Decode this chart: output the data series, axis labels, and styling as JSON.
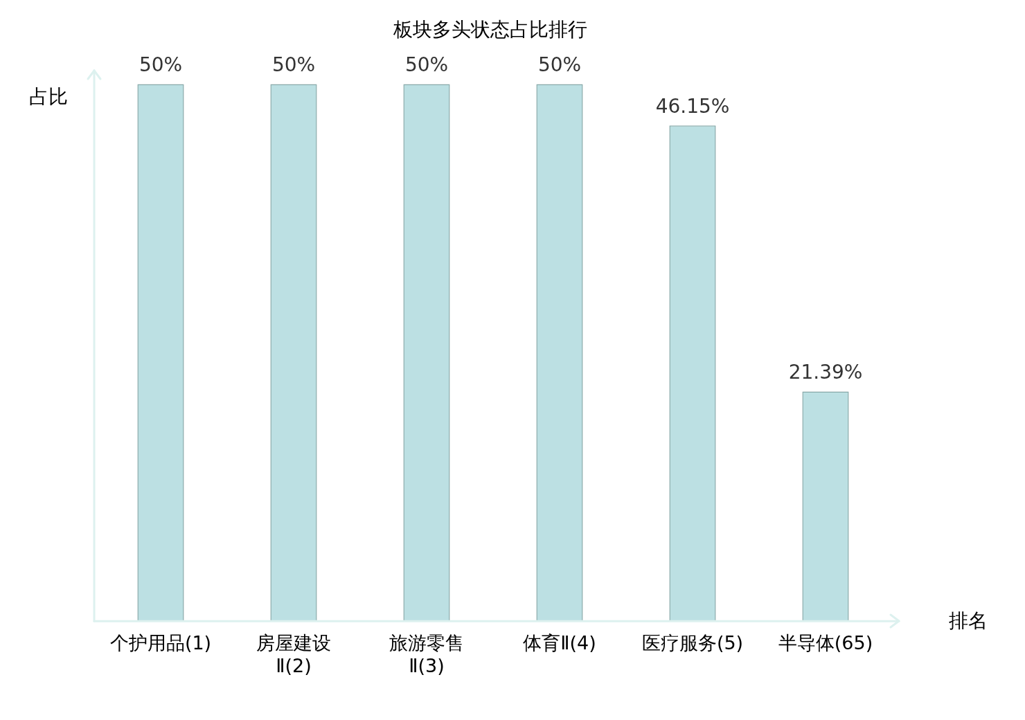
{
  "chart_data": {
    "type": "bar",
    "title": "板块多头状态占比排行",
    "xlabel": "排名",
    "ylabel": "占比",
    "categories": [
      "个护用品(1)",
      "房屋建设Ⅱ(2)",
      "旅游零售Ⅱ(3)",
      "体育Ⅱ(4)",
      "医疗服务(5)",
      "半导体(65)"
    ],
    "values": [
      50,
      50,
      50,
      50,
      46.15,
      21.39
    ],
    "value_labels": [
      "50%",
      "50%",
      "50%",
      "50%",
      "46.15%",
      "21.39%"
    ],
    "color": "#bce0e3",
    "grid": false,
    "legend": false
  }
}
